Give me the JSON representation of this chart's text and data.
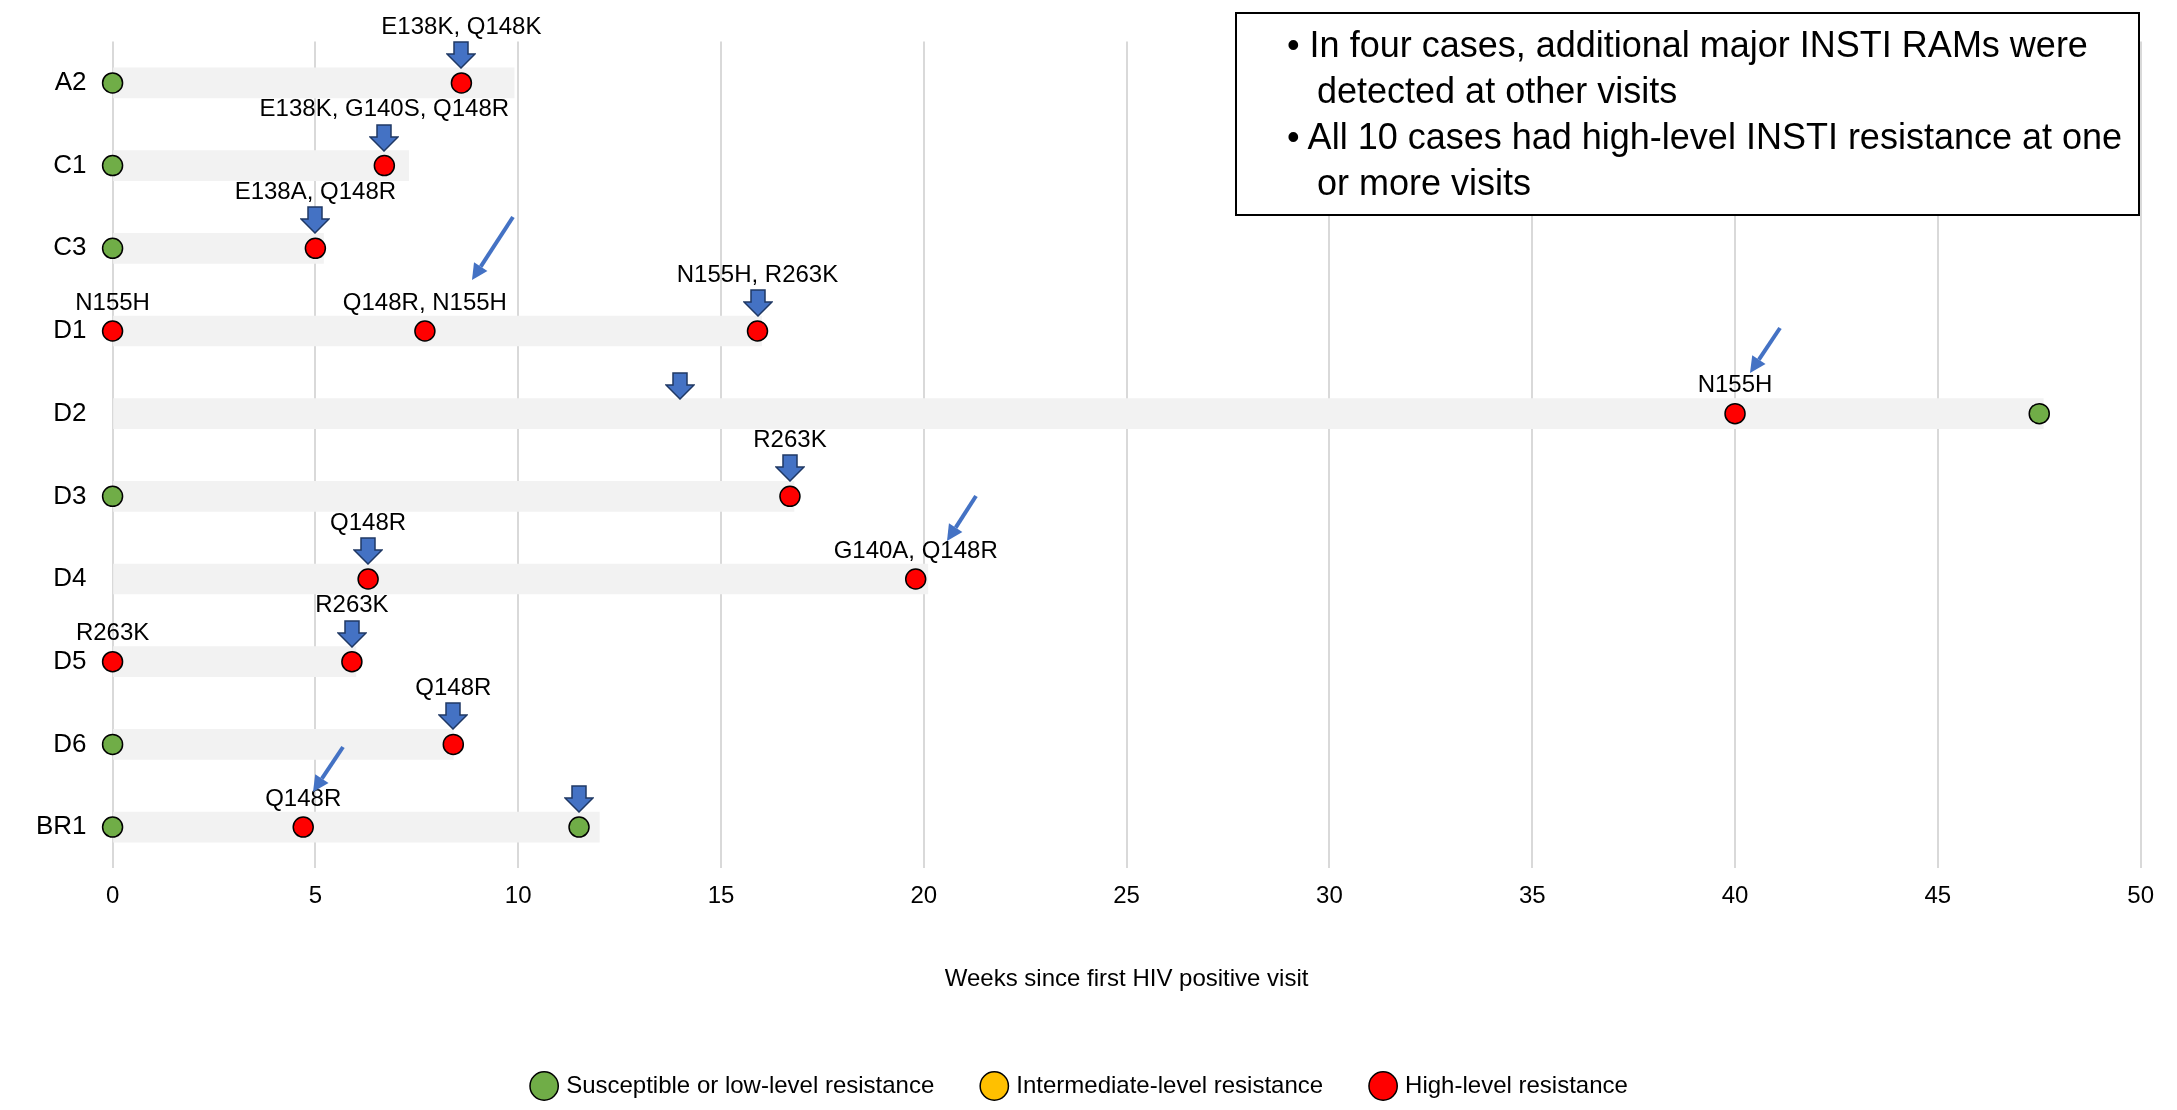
{
  "chart_data": {
    "type": "bar",
    "orientation": "horizontal",
    "xlabel": "Weeks since first HIV positive visit",
    "categories": [
      "A2",
      "C1",
      "C3",
      "D1",
      "D2",
      "D3",
      "D4",
      "D5",
      "D6",
      "BR1"
    ],
    "xlim": [
      0,
      50
    ],
    "xticks": [
      0,
      5,
      10,
      15,
      20,
      25,
      30,
      35,
      40,
      45,
      50
    ],
    "grid": "x",
    "legend": "bottom",
    "marker": "circle",
    "series": [
      {
        "color": "#f2f2f2",
        "values": [
          9.9,
          7.3,
          5.2,
          16,
          47.6,
          16.8,
          20.1,
          6,
          8.4,
          12
        ]
      },
      {
        "type": "scatter",
        "name": "Susceptible or low-level resistance",
        "color": "#70ad47",
        "x": [
          "A2",
          "C1",
          "C3",
          "D3",
          "D6",
          "BR1",
          "D2",
          "BR1"
        ],
        "values": [
          0,
          0,
          0,
          0,
          0,
          0,
          47.5,
          11.5
        ]
      },
      {
        "type": "scatter",
        "name": "Intermediate-level resistance",
        "color": "#ffc000",
        "x": [
          "A2",
          "C1",
          "C3",
          "D1",
          "D2",
          "D3",
          "D4",
          "D5",
          "D6",
          "BR1"
        ],
        "values": [
          null,
          null,
          null,
          null,
          null,
          null,
          null,
          null,
          null,
          null
        ]
      },
      {
        "type": "scatter",
        "name": "High-level resistance",
        "color": "#ff0000",
        "x": [
          "A2",
          "C1",
          "C3",
          "D1",
          "D1",
          "D1",
          "D2",
          "D3",
          "D4",
          "D4",
          "D5",
          "D5",
          "D6",
          "BR1"
        ],
        "values": [
          8.6,
          6.7,
          5,
          0,
          7.7,
          15.9,
          40,
          16.7,
          6.3,
          19.8,
          0,
          5.9,
          8.4,
          4.7
        ]
      }
    ],
    "annotations": [
      {
        "text": "E138K, Q148K",
        "x": 8.6,
        "y": "A2"
      },
      {
        "text": "E138K, G140S, Q148R",
        "x": 6.7,
        "y": "C1"
      },
      {
        "text": "E138A, Q148R",
        "x": 5,
        "y": "C3"
      },
      {
        "text": "N155H",
        "x": 0,
        "y": "D1"
      },
      {
        "text": "Q148R, N155H",
        "x": 7.7,
        "y": "D1"
      },
      {
        "text": "N155H, R263K",
        "x": 15.9,
        "y": "D1"
      },
      {
        "text": "N155H",
        "x": 40,
        "y": "D2"
      },
      {
        "text": "R263K",
        "x": 16.7,
        "y": "D3"
      },
      {
        "text": "Q148R",
        "x": 6.3,
        "y": "D4"
      },
      {
        "text": "G140A, Q148R",
        "x": 19.8,
        "y": "D4"
      },
      {
        "text": "R263K",
        "x": 0,
        "y": "D5"
      },
      {
        "text": "R263K",
        "x": 5.9,
        "y": "D5"
      },
      {
        "text": "Q148R",
        "x": 8.4,
        "y": "D6"
      },
      {
        "text": "Q148R",
        "x": 4.7,
        "y": "BR1"
      },
      "• In four cases, additional major INSTI RAMs were detected at other visits",
      "• All 10 cases had high-level INSTI resistance at one or more visits"
    ]
  }
}
